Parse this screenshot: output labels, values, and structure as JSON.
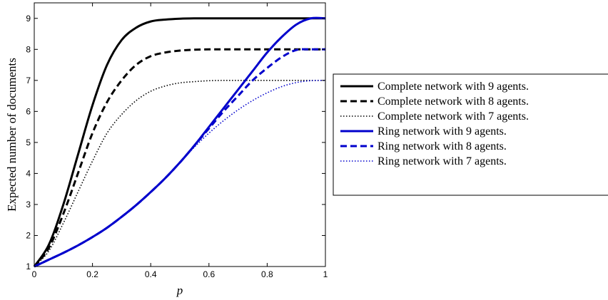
{
  "chart_data": {
    "type": "line",
    "title": "",
    "xlabel": "p",
    "ylabel": "Expected number of documents",
    "xlim": [
      0,
      1
    ],
    "ylim": [
      1,
      9.5
    ],
    "x_ticks": [
      "0",
      "0.2",
      "0.4",
      "0.6",
      "0.8",
      "1"
    ],
    "y_ticks": [
      "1",
      "2",
      "3",
      "4",
      "5",
      "6",
      "7",
      "8",
      "9"
    ],
    "grid": false,
    "legend_position": "outside-right",
    "x": [
      0,
      0.05,
      0.1,
      0.15,
      0.2,
      0.25,
      0.3,
      0.35,
      0.4,
      0.45,
      0.5,
      0.55,
      0.6,
      0.65,
      0.7,
      0.75,
      0.8,
      0.85,
      0.9,
      0.95,
      1.0
    ],
    "series": [
      {
        "name": "Complete network with 9 agents.",
        "color": "#000000",
        "dash": "solid",
        "values": [
          1,
          1.7,
          3.0,
          4.6,
          6.2,
          7.5,
          8.3,
          8.7,
          8.9,
          8.96,
          8.99,
          9.0,
          9.0,
          9.0,
          9.0,
          9.0,
          9.0,
          9.0,
          9.0,
          9.0,
          9.0
        ]
      },
      {
        "name": "Complete network with 8 agents.",
        "color": "#000000",
        "dash": "dashed",
        "values": [
          1,
          1.6,
          2.7,
          4.0,
          5.3,
          6.3,
          7.0,
          7.5,
          7.78,
          7.9,
          7.96,
          7.99,
          8.0,
          8.0,
          8.0,
          8.0,
          8.0,
          8.0,
          8.0,
          8.0,
          8.0
        ]
      },
      {
        "name": "Complete network with 7 agents.",
        "color": "#000000",
        "dash": "dotted",
        "values": [
          1,
          1.5,
          2.4,
          3.4,
          4.4,
          5.3,
          5.9,
          6.35,
          6.65,
          6.82,
          6.92,
          6.96,
          6.99,
          7.0,
          7.0,
          7.0,
          7.0,
          7.0,
          7.0,
          7.0,
          7.0
        ]
      },
      {
        "name": "Ring network with 9 agents.",
        "color": "#0000cc",
        "dash": "solid",
        "values": [
          1,
          1.22,
          1.44,
          1.68,
          1.95,
          2.25,
          2.6,
          2.98,
          3.4,
          3.85,
          4.35,
          4.9,
          5.5,
          6.1,
          6.7,
          7.3,
          7.9,
          8.4,
          8.8,
          9.0,
          9.0
        ]
      },
      {
        "name": "Ring network with 8 agents.",
        "color": "#0000cc",
        "dash": "dashed",
        "values": [
          1,
          1.22,
          1.44,
          1.68,
          1.95,
          2.25,
          2.6,
          2.98,
          3.4,
          3.85,
          4.35,
          4.9,
          5.45,
          6.0,
          6.5,
          7.0,
          7.4,
          7.75,
          7.98,
          8.0,
          8.0
        ]
      },
      {
        "name": "Ring network with 7 agents.",
        "color": "#0000cc",
        "dash": "dotted",
        "values": [
          1,
          1.22,
          1.44,
          1.68,
          1.95,
          2.25,
          2.6,
          2.98,
          3.4,
          3.85,
          4.35,
          4.85,
          5.3,
          5.7,
          6.05,
          6.35,
          6.6,
          6.8,
          6.93,
          6.99,
          7.0
        ]
      }
    ]
  }
}
